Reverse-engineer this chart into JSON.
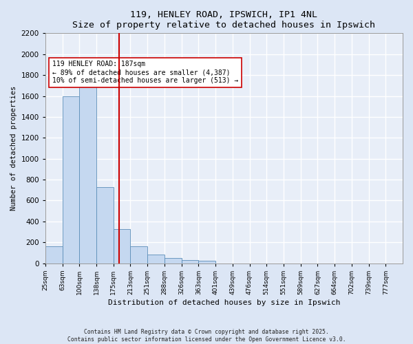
{
  "title": "119, HENLEY ROAD, IPSWICH, IP1 4NL",
  "subtitle": "Size of property relative to detached houses in Ipswich",
  "xlabel": "Distribution of detached houses by size in Ipswich",
  "ylabel": "Number of detached properties",
  "bar_color": "#c5d8f0",
  "bar_edge_color": "#5b8db8",
  "bg_color": "#e8eef8",
  "grid_color": "#ffffff",
  "annotation_text": "119 HENLEY ROAD: 187sqm\n← 89% of detached houses are smaller (4,387)\n10% of semi-detached houses are larger (513) →",
  "vline_color": "#cc0000",
  "categories": [
    "25sqm",
    "63sqm",
    "100sqm",
    "138sqm",
    "175sqm",
    "213sqm",
    "251sqm",
    "288sqm",
    "326sqm",
    "363sqm",
    "401sqm",
    "439sqm",
    "476sqm",
    "514sqm",
    "551sqm",
    "589sqm",
    "627sqm",
    "664sqm",
    "702sqm",
    "739sqm",
    "777sqm"
  ],
  "values": [
    160,
    1600,
    1800,
    725,
    330,
    160,
    85,
    52,
    28,
    22,
    0,
    0,
    0,
    0,
    0,
    0,
    0,
    0,
    0,
    0,
    0
  ],
  "ylim": [
    0,
    2200
  ],
  "yticks": [
    0,
    200,
    400,
    600,
    800,
    1000,
    1200,
    1400,
    1600,
    1800,
    2000,
    2200
  ],
  "property_size_bin": 4,
  "property_size_label": "187",
  "footer": "Contains HM Land Registry data © Crown copyright and database right 2025.\nContains public sector information licensed under the Open Government Licence v3.0."
}
